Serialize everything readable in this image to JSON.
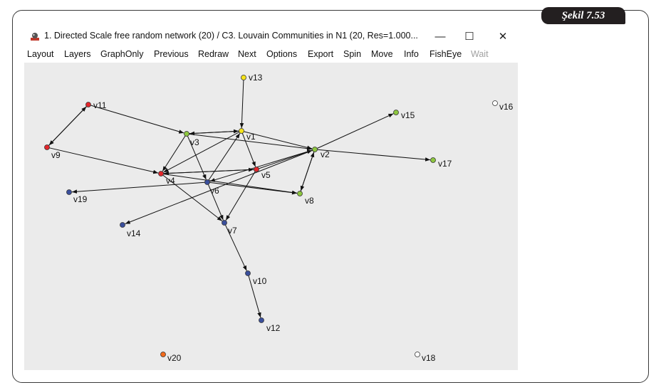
{
  "figure": {
    "caption": "Şekil 7.53"
  },
  "window": {
    "title": "1. Directed Scale free random network (20) / C3. Louvain Communities in N1 (20, Res=1.000...",
    "minimize": "—",
    "maximize": "☐",
    "close": "✕"
  },
  "menu": [
    "Layout",
    "Layers",
    "GraphOnly",
    "Previous",
    "Redraw",
    "Next",
    "Options",
    "Export",
    "Spin",
    "Move",
    "Info",
    "FishEye",
    "Wait"
  ],
  "menu_disabled": [
    "Wait"
  ],
  "colors": {
    "yellow": "#f5e31a",
    "green": "#8dc63f",
    "red": "#e3262b",
    "blue": "#3a4f9c",
    "orange": "#f26a1b",
    "white": "#ffffff",
    "background": "#ebebeb"
  },
  "graph": {
    "nodes": [
      {
        "id": "v1",
        "label": "v1",
        "color": "yellow"
      },
      {
        "id": "v2",
        "label": "v2",
        "color": "green"
      },
      {
        "id": "v3",
        "label": "v3",
        "color": "green"
      },
      {
        "id": "v4",
        "label": "v4",
        "color": "red"
      },
      {
        "id": "v5",
        "label": "v5",
        "color": "red"
      },
      {
        "id": "v6",
        "label": "v6",
        "color": "blue"
      },
      {
        "id": "v7",
        "label": "v7",
        "color": "blue"
      },
      {
        "id": "v8",
        "label": "v8",
        "color": "green"
      },
      {
        "id": "v9",
        "label": "v9",
        "color": "red"
      },
      {
        "id": "v10",
        "label": "v10",
        "color": "blue"
      },
      {
        "id": "v11",
        "label": "v11",
        "color": "red"
      },
      {
        "id": "v12",
        "label": "v12",
        "color": "blue"
      },
      {
        "id": "v13",
        "label": "v13",
        "color": "yellow"
      },
      {
        "id": "v14",
        "label": "v14",
        "color": "blue"
      },
      {
        "id": "v15",
        "label": "v15",
        "color": "green"
      },
      {
        "id": "v16",
        "label": "v16",
        "color": "white"
      },
      {
        "id": "v17",
        "label": "v17",
        "color": "green"
      },
      {
        "id": "v18",
        "label": "v18",
        "color": "white"
      },
      {
        "id": "v19",
        "label": "v19",
        "color": "blue"
      },
      {
        "id": "v20",
        "label": "v20",
        "color": "orange"
      }
    ],
    "edges": [
      [
        "v13",
        "v1"
      ],
      [
        "v11",
        "v3"
      ],
      [
        "v11",
        "v9"
      ],
      [
        "v9",
        "v11"
      ],
      [
        "v9",
        "v4"
      ],
      [
        "v3",
        "v1"
      ],
      [
        "v1",
        "v3"
      ],
      [
        "v3",
        "v2"
      ],
      [
        "v3",
        "v6"
      ],
      [
        "v1",
        "v2"
      ],
      [
        "v1",
        "v4"
      ],
      [
        "v1",
        "v5"
      ],
      [
        "v6",
        "v1"
      ],
      [
        "v2",
        "v15"
      ],
      [
        "v2",
        "v17"
      ],
      [
        "v2",
        "v8"
      ],
      [
        "v8",
        "v2"
      ],
      [
        "v2",
        "v6"
      ],
      [
        "v5",
        "v2"
      ],
      [
        "v3",
        "v4"
      ],
      [
        "v4",
        "v5"
      ],
      [
        "v5",
        "v4"
      ],
      [
        "v4",
        "v8"
      ],
      [
        "v6",
        "v8"
      ],
      [
        "v4",
        "v7"
      ],
      [
        "v6",
        "v7"
      ],
      [
        "v5",
        "v7"
      ],
      [
        "v6",
        "v19"
      ],
      [
        "v2",
        "v14"
      ],
      [
        "v7",
        "v10"
      ],
      [
        "v10",
        "v12"
      ]
    ]
  }
}
